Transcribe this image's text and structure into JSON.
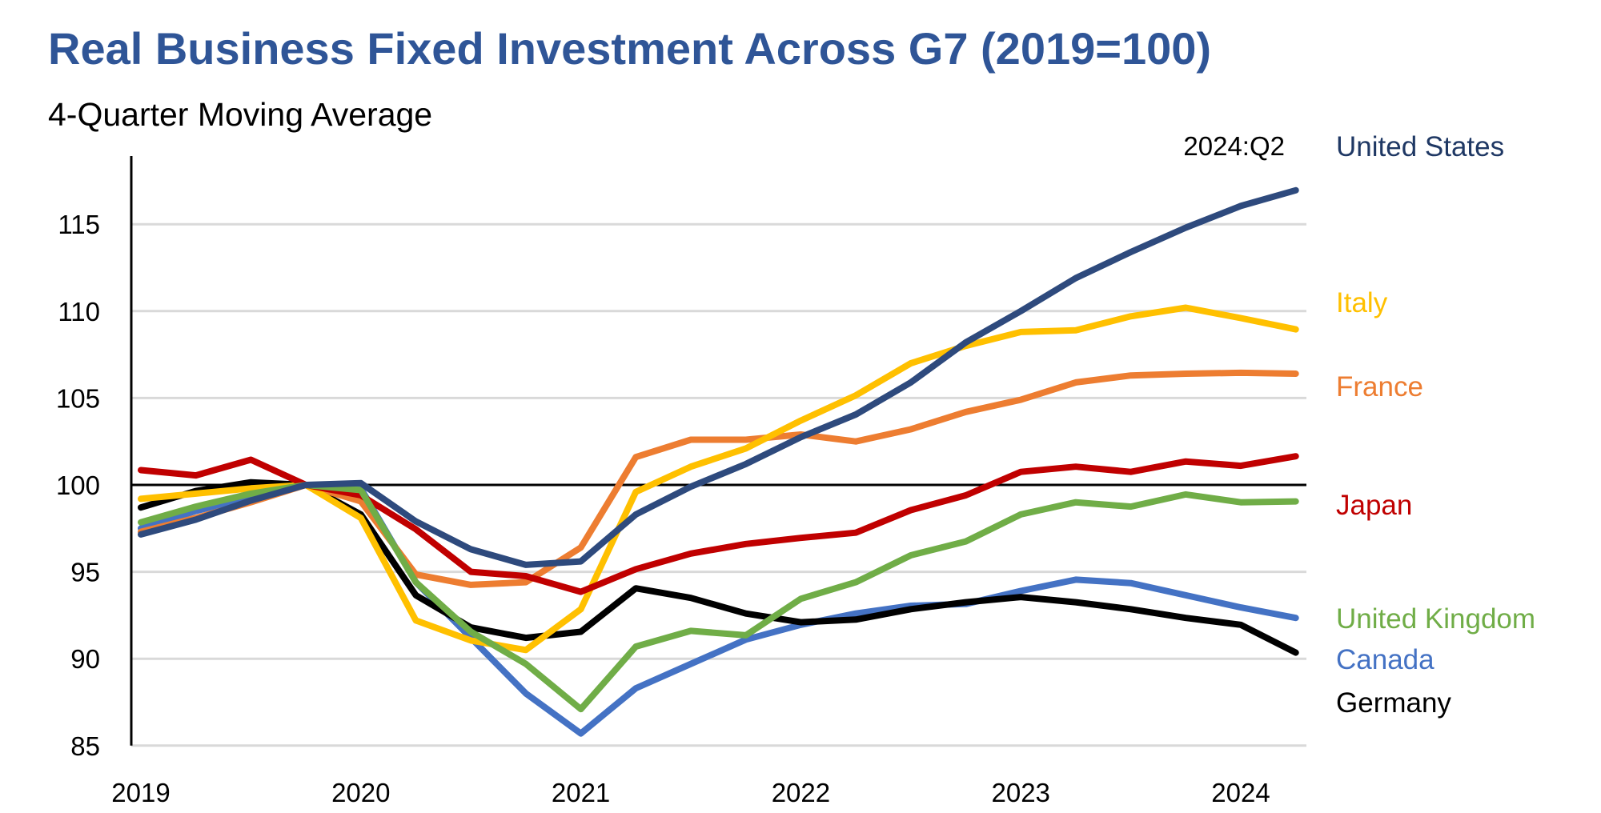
{
  "chart_data": {
    "type": "line",
    "title": "Real Business Fixed Investment Across G7 (2019=100)",
    "subtitle": "4-Quarter Moving Average",
    "annotation": "2024:Q2",
    "xlabel": "",
    "ylabel": "",
    "ylim": [
      85,
      118
    ],
    "y_ticks": [
      85,
      90,
      95,
      100,
      105,
      110,
      115
    ],
    "x_ticks": [
      "2019",
      "2020",
      "2021",
      "2022",
      "2023",
      "2024"
    ],
    "x": [
      "2019:Q1",
      "2019:Q2",
      "2019:Q3",
      "2019:Q4",
      "2020:Q1",
      "2020:Q2",
      "2020:Q3",
      "2020:Q4",
      "2021:Q1",
      "2021:Q2",
      "2021:Q3",
      "2021:Q4",
      "2022:Q1",
      "2022:Q2",
      "2022:Q3",
      "2022:Q4",
      "2023:Q1",
      "2023:Q2",
      "2023:Q3",
      "2023:Q4",
      "2024:Q1",
      "2024:Q2"
    ],
    "grid": true,
    "reference_line": 100,
    "legend_placement": "right",
    "series": [
      {
        "name": "Canada",
        "color": "#4472c4",
        "label_color": "#4472c4",
        "values": [
          97.5,
          98.5,
          99.3,
          100,
          99.8,
          94.4,
          91.2,
          88.0,
          85.7,
          88.3,
          89.7,
          91.1,
          91.95,
          92.6,
          93.05,
          93.15,
          93.9,
          94.55,
          94.35,
          93.65,
          92.95,
          92.35
        ]
      },
      {
        "name": "Germany",
        "color": "#000000",
        "label_color": "#000000",
        "values": [
          98.7,
          99.65,
          100.15,
          100,
          98.3,
          93.65,
          91.8,
          91.2,
          91.55,
          94.05,
          93.5,
          92.6,
          92.1,
          92.25,
          92.85,
          93.25,
          93.55,
          93.25,
          92.85,
          92.35,
          91.95,
          90.35
        ]
      },
      {
        "name": "France",
        "color": "#ed7d31",
        "label_color": "#ed7d31",
        "values": [
          97.3,
          98.1,
          99.0,
          100,
          99.05,
          94.85,
          94.25,
          94.4,
          96.4,
          101.6,
          102.6,
          102.6,
          102.9,
          102.5,
          103.2,
          104.2,
          104.9,
          105.9,
          106.3,
          106.4,
          106.45,
          106.4
        ]
      },
      {
        "name": "Italy",
        "color": "#ffc000",
        "label_color": "#ffc000",
        "values": [
          99.2,
          99.5,
          99.8,
          100,
          98.1,
          92.2,
          91.05,
          90.5,
          92.85,
          99.6,
          101.05,
          102.1,
          103.7,
          105.15,
          107.0,
          108.0,
          108.8,
          108.9,
          109.7,
          110.2,
          109.6,
          108.95
        ]
      },
      {
        "name": "Japan",
        "color": "#c00000",
        "label_color": "#c00000",
        "values": [
          100.85,
          100.55,
          101.45,
          100,
          99.4,
          97.45,
          95.0,
          94.75,
          93.85,
          95.15,
          96.05,
          96.6,
          96.95,
          97.25,
          98.55,
          99.4,
          100.75,
          101.05,
          100.75,
          101.35,
          101.1,
          101.65
        ]
      },
      {
        "name": "United Kingdom",
        "color": "#70ad47",
        "label_color": "#70ad47",
        "values": [
          97.85,
          98.75,
          99.5,
          100,
          99.7,
          94.4,
          91.55,
          89.7,
          87.1,
          90.7,
          91.6,
          91.35,
          93.45,
          94.4,
          95.95,
          96.75,
          98.3,
          99.0,
          98.75,
          99.45,
          99.0,
          99.05
        ]
      },
      {
        "name": "United States",
        "color": "#2e4a7d",
        "label_color": "#1f3864",
        "values": [
          97.15,
          98.0,
          99.1,
          100,
          100.1,
          97.9,
          96.3,
          95.4,
          95.6,
          98.3,
          99.9,
          101.2,
          102.75,
          104.05,
          105.9,
          108.2,
          110.0,
          111.9,
          113.4,
          114.8,
          116.05,
          116.95
        ]
      }
    ],
    "title_color": "#2f5597"
  }
}
